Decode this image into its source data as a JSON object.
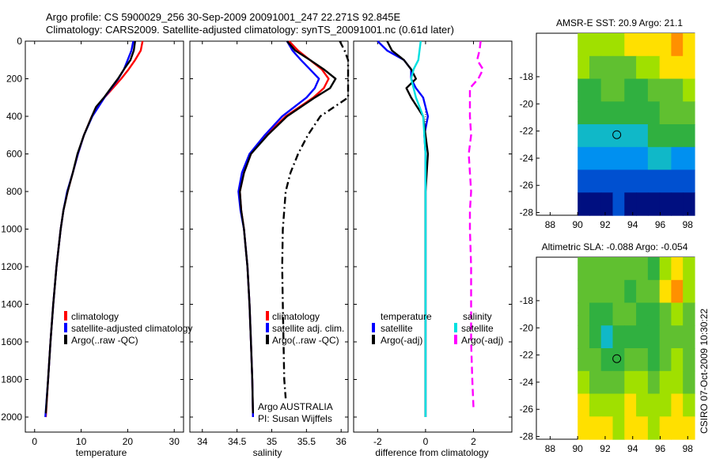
{
  "title": {
    "line1": "Argo profile: CS 5900029_256 30-Sep-2009 20091001_247 22.271S 92.845E",
    "line2": "Climatology: CARS2009. Satellite-adjusted climatology: synTS_20091001.nc (0.61d later)"
  },
  "stamp": "CSIRO 07-Oct-2009 10:30:22",
  "colors": {
    "climatology": "#ff0000",
    "satellite": "#0000ff",
    "argo": "#000000",
    "salinity_satellite": "#00e0e0",
    "salinity_argo": "#ff00ff"
  },
  "chart_data": [
    {
      "type": "line",
      "panel": "temperature",
      "xlabel": "temperature",
      "xticks": [
        "0",
        "10",
        "20",
        "30"
      ],
      "yticks": [
        "0",
        "200",
        "400",
        "600",
        "800",
        "1000",
        "1200",
        "1400",
        "1600",
        "1800",
        "2000"
      ],
      "xlim": [
        -2,
        32
      ],
      "ylim": [
        2080,
        0
      ],
      "y_reversed": true,
      "legend": [
        "climatology",
        "satellite-adjusted climatology",
        "Argo(..raw -QC)"
      ],
      "series": [
        {
          "name": "climatology",
          "color": "#ff0000",
          "style": "solid",
          "depth": [
            0,
            50,
            100,
            150,
            200,
            250,
            300,
            400,
            500,
            600,
            700,
            800,
            900,
            1000,
            1200,
            1400,
            1600,
            1800,
            2000
          ],
          "values": [
            23.2,
            22.8,
            21.6,
            20.2,
            18.6,
            16.8,
            15.0,
            12.3,
            10.6,
            9.3,
            8.2,
            7.1,
            6.2,
            5.6,
            4.7,
            4.0,
            3.4,
            2.9,
            2.4
          ]
        },
        {
          "name": "satellite-adjusted climatology",
          "color": "#0000ff",
          "style": "solid",
          "depth": [
            0,
            50,
            100,
            150,
            200,
            250,
            300,
            400,
            500,
            600,
            700,
            800,
            900,
            1000,
            1200,
            1400,
            1600,
            1800,
            2000
          ],
          "values": [
            21.2,
            20.8,
            20.0,
            19.2,
            18.0,
            16.5,
            15.0,
            12.4,
            10.6,
            9.3,
            8.2,
            7.0,
            6.2,
            5.6,
            4.7,
            4.0,
            3.4,
            2.9,
            2.3
          ]
        },
        {
          "name": "Argo(..raw -QC)",
          "color": "#000000",
          "style": "solid",
          "depth": [
            0,
            50,
            100,
            150,
            200,
            250,
            300,
            350,
            400,
            500,
            600,
            700,
            800,
            900,
            1000,
            1200,
            1400,
            1600,
            1800,
            1980
          ],
          "values": [
            21.6,
            21.3,
            20.6,
            19.2,
            17.9,
            16.4,
            14.9,
            13.2,
            12.3,
            10.6,
            9.2,
            8.2,
            7.1,
            6.2,
            5.6,
            4.7,
            4.0,
            3.4,
            2.9,
            2.4
          ]
        }
      ]
    },
    {
      "type": "line",
      "panel": "salinity",
      "xlabel": "salinity",
      "xticks": [
        "34",
        "34.5",
        "35",
        "35.5",
        "36"
      ],
      "xlim": [
        33.82,
        36.1
      ],
      "ylim": [
        2080,
        0
      ],
      "y_reversed": true,
      "legend": [
        "climatology",
        "satellite adj. clim.",
        "Argo(..raw -QC)"
      ],
      "annotation": [
        "Argo AUSTRALIA",
        "PI: Susan Wijffels"
      ],
      "series": [
        {
          "name": "climatology",
          "color": "#ff0000",
          "style": "solid",
          "depth": [
            0,
            50,
            100,
            150,
            200,
            250,
            300,
            400,
            500,
            600,
            700,
            800,
            900,
            1000,
            1200,
            1400,
            1600,
            1800,
            2000
          ],
          "values": [
            35.25,
            35.38,
            35.55,
            35.72,
            35.82,
            35.75,
            35.6,
            35.2,
            34.92,
            34.7,
            34.6,
            34.54,
            34.56,
            34.6,
            34.65,
            34.68,
            34.7,
            34.72,
            34.73
          ]
        },
        {
          "name": "satellite adj. clim.",
          "color": "#0000ff",
          "style": "solid",
          "depth": [
            0,
            50,
            100,
            150,
            200,
            250,
            300,
            400,
            500,
            600,
            700,
            800,
            900,
            1000,
            1200,
            1400,
            1600,
            1800,
            2000
          ],
          "values": [
            35.22,
            35.3,
            35.42,
            35.55,
            35.68,
            35.62,
            35.5,
            35.15,
            34.9,
            34.68,
            34.57,
            34.52,
            34.55,
            34.6,
            34.65,
            34.68,
            34.7,
            34.72,
            34.73
          ]
        },
        {
          "name": "Argo(..raw -QC)",
          "color": "#000000",
          "style": "solid",
          "depth": [
            0,
            50,
            100,
            150,
            200,
            250,
            300,
            400,
            500,
            600,
            700,
            800,
            900,
            1000,
            1200,
            1400,
            1600,
            1800,
            1980
          ],
          "values": [
            35.22,
            35.34,
            35.55,
            35.75,
            35.92,
            35.84,
            35.62,
            35.22,
            34.94,
            34.7,
            34.6,
            34.54,
            34.56,
            34.6,
            34.65,
            34.68,
            34.7,
            34.72,
            34.73
          ]
        },
        {
          "name": "Argo raw",
          "color": "#000000",
          "style": "dashdot",
          "depth": [
            0,
            50,
            100,
            200,
            300,
            400,
            500,
            600,
            700,
            800,
            900,
            1000,
            1200,
            1400,
            1600,
            1800,
            1900
          ],
          "values": [
            35.98,
            36.05,
            36.1,
            36.1,
            36.1,
            35.7,
            35.52,
            35.38,
            35.27,
            35.2,
            35.18,
            35.16,
            35.15,
            35.16,
            35.17,
            35.18,
            35.2
          ]
        }
      ]
    },
    {
      "type": "line",
      "panel": "difference",
      "xlabel": "difference from climatology",
      "xticks": [
        "-2",
        "0",
        "2"
      ],
      "xlim": [
        -3.0,
        3.6
      ],
      "ylim": [
        2080,
        0
      ],
      "y_reversed": true,
      "legend": {
        "temperature": [
          "satellite",
          "Argo(-adj)"
        ],
        "salinity": [
          "satellite",
          "Argo(-adj)"
        ]
      },
      "legend_headers": [
        "temperature",
        "salinity"
      ],
      "series": [
        {
          "name": "temperature satellite",
          "color": "#0000ff",
          "style": "solid",
          "depth": [
            0,
            50,
            100,
            150,
            200,
            250,
            300,
            400,
            500,
            600,
            800,
            1000,
            1200,
            1600,
            2000
          ],
          "values": [
            -2.0,
            -1.6,
            -0.9,
            -0.6,
            -0.6,
            -0.4,
            -0.1,
            0.1,
            -0.05,
            0.0,
            0.0,
            0.0,
            0.0,
            0.0,
            0.0
          ]
        },
        {
          "name": "temperature Argo(-adj)",
          "color": "#000000",
          "style": "solid",
          "depth": [
            0,
            50,
            100,
            150,
            200,
            250,
            300,
            400,
            500,
            600,
            700,
            800,
            1000,
            1200,
            1600,
            2000
          ],
          "values": [
            -1.6,
            -1.4,
            -0.9,
            -0.6,
            -0.4,
            -0.8,
            -0.6,
            -0.1,
            0.0,
            0.1,
            0.05,
            0.0,
            0.0,
            0.0,
            0.0,
            0.0
          ]
        },
        {
          "name": "salinity satellite",
          "color": "#00e0e0",
          "style": "solid",
          "depth": [
            0,
            50,
            100,
            150,
            200,
            250,
            300,
            400,
            600,
            800,
            1000,
            1400,
            1800,
            2000
          ],
          "values": [
            -0.2,
            -0.25,
            -0.3,
            -0.5,
            -0.6,
            -0.5,
            -0.4,
            -0.1,
            0.0,
            0.0,
            0.0,
            0.0,
            0.0,
            0.0
          ]
        },
        {
          "name": "salinity Argo(-adj)",
          "color": "#ff00ff",
          "style": "dashed",
          "depth": [
            0,
            50,
            100,
            150,
            200,
            250,
            300,
            400,
            500,
            600,
            700,
            800,
            900,
            1000,
            1200,
            1400,
            1600,
            1800,
            1950
          ],
          "values": [
            2.3,
            2.25,
            2.15,
            2.4,
            2.2,
            1.85,
            1.85,
            1.85,
            1.9,
            1.8,
            1.85,
            1.9,
            1.85,
            1.85,
            1.9,
            1.9,
            1.9,
            1.95,
            2.0
          ]
        }
      ]
    },
    {
      "type": "heatmap",
      "panel": "sst_map",
      "title": "AMSR-E SST: 20.9  Argo: 21.1",
      "xticks": [
        "88",
        "90",
        "92",
        "94",
        "96",
        "98"
      ],
      "yticks": [
        "-18",
        "-20",
        "-22",
        "-24",
        "-26",
        "-28"
      ],
      "xlim": [
        87,
        98.5
      ],
      "ylim": [
        -28.2,
        -14.8
      ],
      "data_xlim": [
        90,
        98.5
      ],
      "marker": {
        "lon": 92.845,
        "lat": -22.271
      },
      "palette": [
        "#000f80",
        "#0050d0",
        "#0090f0",
        "#10b8c8",
        "#30b040",
        "#60c030",
        "#a0e000",
        "#ffe000",
        "#ff9000"
      ],
      "rows_north_to_south": [
        [
          6,
          6,
          6,
          6,
          7,
          7,
          7,
          7,
          8,
          7
        ],
        [
          6,
          5,
          5,
          5,
          5,
          6,
          6,
          7,
          7,
          7
        ],
        [
          4,
          4,
          5,
          5,
          4,
          4,
          5,
          5,
          5,
          6
        ],
        [
          4,
          4,
          4,
          4,
          4,
          4,
          4,
          5,
          5,
          5
        ],
        [
          3,
          3,
          3,
          3,
          3,
          3,
          4,
          4,
          4,
          4
        ],
        [
          2,
          2,
          2,
          2,
          2,
          2,
          3,
          3,
          2,
          2
        ],
        [
          1,
          1,
          1,
          1,
          1,
          1,
          1,
          1,
          1,
          1
        ],
        [
          0,
          0,
          0,
          1,
          0,
          0,
          0,
          0,
          0,
          0
        ]
      ]
    },
    {
      "type": "heatmap",
      "panel": "sla_map",
      "title": "Altimetric SLA: -0.088  Argo: -0.054",
      "xticks": [
        "88",
        "90",
        "92",
        "94",
        "96",
        "98"
      ],
      "yticks": [
        "-18",
        "-20",
        "-22",
        "-24",
        "-26",
        "-28"
      ],
      "xlim": [
        87,
        98.5
      ],
      "ylim": [
        -28.2,
        -14.8
      ],
      "data_xlim": [
        90,
        98.5
      ],
      "marker": {
        "lon": 92.845,
        "lat": -22.271
      },
      "palette": [
        "#000f80",
        "#0050d0",
        "#0090f0",
        "#10b8c8",
        "#30b040",
        "#60c030",
        "#a0e000",
        "#ffe000",
        "#ff9000"
      ],
      "rows_north_to_south": [
        [
          5,
          5,
          5,
          5,
          5,
          5,
          4,
          6,
          7,
          6
        ],
        [
          5,
          5,
          5,
          5,
          4,
          5,
          5,
          7,
          8,
          6
        ],
        [
          5,
          4,
          4,
          5,
          5,
          4,
          4,
          5,
          6,
          5
        ],
        [
          5,
          4,
          3,
          4,
          4,
          4,
          4,
          5,
          5,
          5
        ],
        [
          5,
          5,
          4,
          4,
          5,
          5,
          4,
          5,
          6,
          5
        ],
        [
          6,
          5,
          5,
          5,
          6,
          6,
          5,
          6,
          6,
          5
        ],
        [
          7,
          6,
          6,
          6,
          7,
          6,
          6,
          6,
          7,
          6
        ],
        [
          7,
          7,
          7,
          6,
          7,
          7,
          6,
          7,
          7,
          7
        ]
      ]
    }
  ]
}
